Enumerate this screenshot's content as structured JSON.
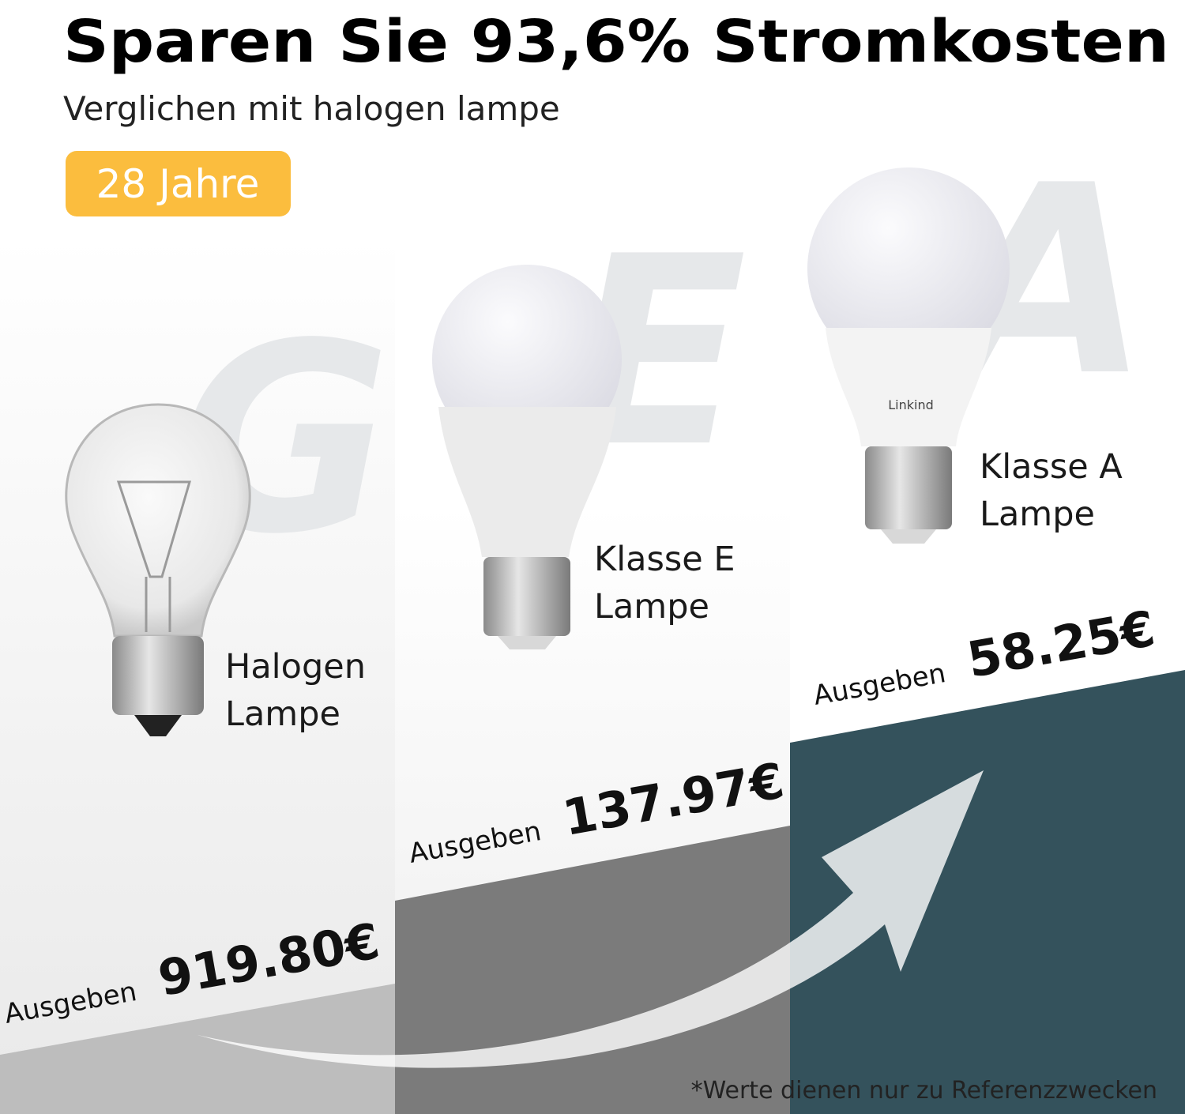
{
  "header": {
    "title": "Sparen Sie 93,6% Stromkosten",
    "subtitle": "Verglichen mit halogen lampe",
    "badge": "28 Jahre"
  },
  "lamps": [
    {
      "letter": "G",
      "label": [
        "Halogen",
        "Lampe"
      ],
      "spend": "Ausgeben",
      "price": "919.80€"
    },
    {
      "letter": "E",
      "label": [
        "Klasse E",
        "Lampe"
      ],
      "spend": "Ausgeben",
      "price": "137.97€"
    },
    {
      "letter": "A",
      "label": [
        "Klasse A",
        "Lampe"
      ],
      "spend": "Ausgeben",
      "price": "58.25€",
      "brand": "Linkind"
    }
  ],
  "footnote": "*Werte dienen nur zu Referenzzwecken"
}
